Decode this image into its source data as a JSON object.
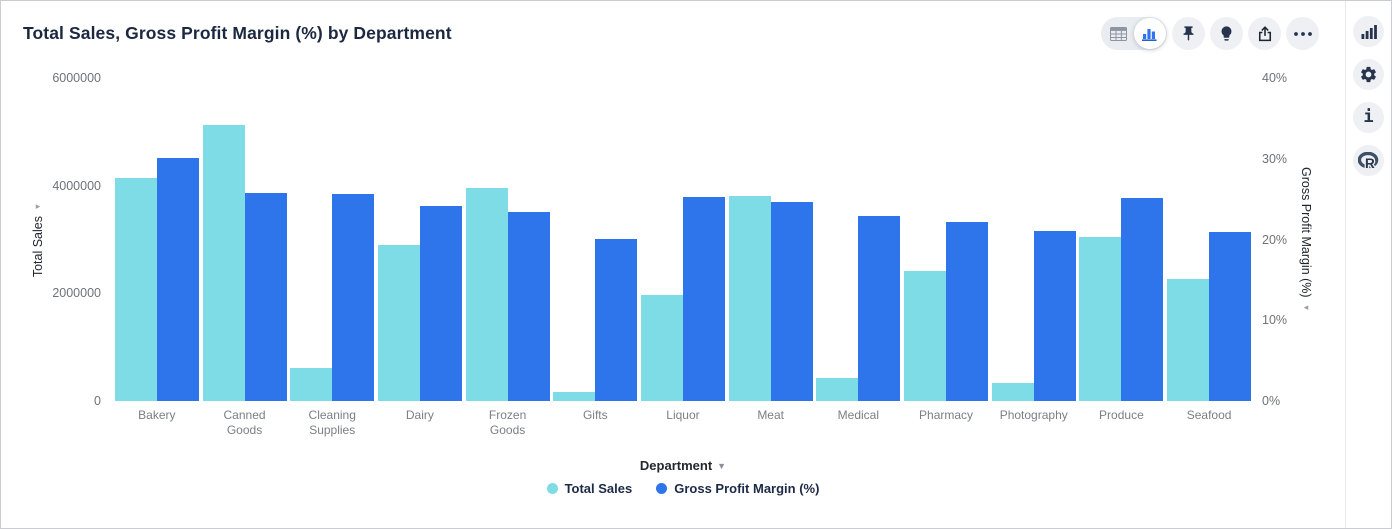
{
  "app": {
    "title": "Total Sales, Gross Profit Margin (%) by Department"
  },
  "toolbar": {
    "view_toggle": {
      "options": [
        "table-view",
        "chart-view"
      ],
      "active": "chart-view"
    },
    "buttons": [
      "pin",
      "spotiq-insights",
      "share",
      "more-options"
    ]
  },
  "right_rail": {
    "buttons": [
      "chart-config",
      "settings",
      "info",
      "r-analysis"
    ]
  },
  "colors": {
    "total_sales": "#7EDCE6",
    "gross_profit_margin": "#2E74EB",
    "title_text": "#1B2840",
    "axis_text": "#6E7379",
    "category_text": "#7B7F85",
    "legend_text": "#1D2A45",
    "icon": "#26344D",
    "icon_bg": "#EEF0F4",
    "icon_muted": "#8E95A0"
  },
  "chart_data": {
    "type": "bar",
    "title": "Total Sales, Gross Profit Margin (%) by Department",
    "categories": [
      "Bakery",
      "Canned Goods",
      "Cleaning Supplies",
      "Dairy",
      "Frozen Goods",
      "Gifts",
      "Liquor",
      "Meat",
      "Medical",
      "Pharmacy",
      "Photography",
      "Produce",
      "Seafood"
    ],
    "series": [
      {
        "name": "Total Sales",
        "axis": "left",
        "color": "#7EDCE6",
        "values": [
          4150000,
          5130000,
          620000,
          2900000,
          3960000,
          170000,
          1970000,
          3800000,
          430000,
          2420000,
          330000,
          3040000,
          2260000
        ]
      },
      {
        "name": "Gross Profit Margin (%)",
        "axis": "right",
        "color": "#2E74EB",
        "values": [
          30.1,
          25.8,
          25.7,
          24.1,
          23.4,
          20.1,
          25.3,
          24.7,
          22.9,
          22.2,
          21.1,
          25.2,
          20.9
        ]
      }
    ],
    "xlabel": "Department",
    "axes": {
      "left": {
        "label": "Total Sales",
        "min": 0,
        "max": 6000000,
        "ticks": [
          "6000000",
          "4000000",
          "2000000",
          "0"
        ]
      },
      "right": {
        "label": "Gross Profit Margin (%)",
        "min": 0,
        "max": 40,
        "ticks": [
          "40%",
          "30%",
          "20%",
          "10%",
          "0%"
        ]
      }
    },
    "legend": [
      "Total Sales",
      "Gross Profit Margin (%)"
    ],
    "legend_position": "bottom",
    "grid": false
  }
}
